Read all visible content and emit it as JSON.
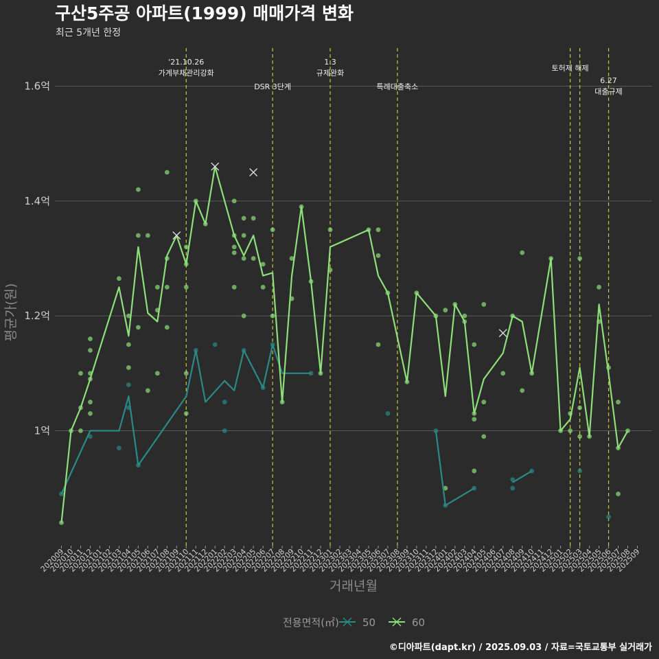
{
  "chart_data": {
    "type": "line",
    "title": "구산5주공 아파트(1999) 매매가격 변화",
    "subtitle": "최근 5개년 한정",
    "xlabel": "거래년월",
    "ylabel": "평균가(원)",
    "ylim": [
      0.8,
      1.6
    ],
    "yticks": [
      {
        "value": 1.0,
        "label": "1억"
      },
      {
        "value": 1.2,
        "label": "1.2억"
      },
      {
        "value": 1.4,
        "label": "1.4억"
      },
      {
        "value": 1.6,
        "label": "1.6억"
      }
    ],
    "x": [
      "202009",
      "202010",
      "202011",
      "202012",
      "202101",
      "202102",
      "202103",
      "202104",
      "202105",
      "202106",
      "202107",
      "202108",
      "202109",
      "202110",
      "202111",
      "202112",
      "202201",
      "202202",
      "202203",
      "202204",
      "202205",
      "202206",
      "202207",
      "202208",
      "202209",
      "202210",
      "202211",
      "202212",
      "202301",
      "202302",
      "202303",
      "202304",
      "202305",
      "202306",
      "202307",
      "202308",
      "202309",
      "202310",
      "202311",
      "202312",
      "202401",
      "202402",
      "202403",
      "202404",
      "202405",
      "202406",
      "202407",
      "202408",
      "202409",
      "202410",
      "202411",
      "202412",
      "202501",
      "202502",
      "202503",
      "202504",
      "202505",
      "202506",
      "202507",
      "202508",
      "202509"
    ],
    "legend_title": "전용면적(㎡)",
    "grid": true,
    "series": [
      {
        "name": "50",
        "color": "#2a8a88",
        "line": [
          [
            "202009",
            0.89
          ],
          [
            "202012",
            1.0
          ],
          [
            "202103",
            1.0
          ],
          [
            "202104",
            1.06
          ],
          [
            "202105",
            0.94
          ],
          [
            "202110",
            1.06
          ],
          [
            "202111",
            1.14
          ],
          [
            "202112",
            1.05
          ],
          [
            "202202",
            1.087
          ],
          [
            "202203",
            1.07
          ],
          [
            "202204",
            1.14
          ],
          [
            "202206",
            1.075
          ],
          [
            "202207",
            1.15
          ],
          [
            "202208",
            1.1
          ],
          [
            "202211",
            1.1
          ]
        ],
        "line2": [
          [
            "202312",
            1.0
          ],
          [
            "202401",
            0.87
          ],
          [
            "202404",
            0.9
          ]
        ],
        "line3": [
          [
            "202408",
            0.91
          ],
          [
            "202410",
            0.93
          ]
        ],
        "points": [
          [
            "202009",
            0.89
          ],
          [
            "202012",
            0.99
          ],
          [
            "202103",
            0.97
          ],
          [
            "202104",
            1.04
          ],
          [
            "202104",
            1.08
          ],
          [
            "202105",
            0.94
          ],
          [
            "202111",
            1.14
          ],
          [
            "202201",
            1.15
          ],
          [
            "202202",
            1.05
          ],
          [
            "202202",
            1.0
          ],
          [
            "202204",
            1.14
          ],
          [
            "202206",
            1.075
          ],
          [
            "202207",
            1.15
          ],
          [
            "202211",
            1.1
          ],
          [
            "202307",
            1.03
          ],
          [
            "202312",
            1.0
          ],
          [
            "202401",
            0.87
          ],
          [
            "202404",
            0.9
          ],
          [
            "202408",
            0.9
          ],
          [
            "202408",
            0.915
          ],
          [
            "202410",
            0.93
          ],
          [
            "202503",
            0.93
          ],
          [
            "202506",
            0.85
          ]
        ]
      },
      {
        "name": "60",
        "color": "#8ee07a",
        "line": [
          [
            "202009",
            0.84
          ],
          [
            "202010",
            1.0
          ],
          [
            "202011",
            1.04
          ],
          [
            "202012",
            1.09
          ],
          [
            "202103",
            1.25
          ],
          [
            "202104",
            1.165
          ],
          [
            "202105",
            1.32
          ],
          [
            "202106",
            1.205
          ],
          [
            "202107",
            1.19
          ],
          [
            "202108",
            1.305
          ],
          [
            "202109",
            1.34
          ],
          [
            "202110",
            1.29
          ],
          [
            "202111",
            1.4
          ],
          [
            "202112",
            1.36
          ],
          [
            "202201",
            1.46
          ],
          [
            "202203",
            1.34
          ],
          [
            "202204",
            1.305
          ],
          [
            "202205",
            1.34
          ],
          [
            "202206",
            1.27
          ],
          [
            "202207",
            1.275
          ],
          [
            "202208",
            1.05
          ],
          [
            "202209",
            1.27
          ],
          [
            "202210",
            1.39
          ],
          [
            "202211",
            1.26
          ],
          [
            "202212",
            1.1
          ],
          [
            "202301",
            1.32
          ],
          [
            "202305",
            1.35
          ],
          [
            "202306",
            1.27
          ],
          [
            "202307",
            1.24
          ],
          [
            "202309",
            1.085
          ],
          [
            "202310",
            1.24
          ],
          [
            "202312",
            1.2
          ],
          [
            "202401",
            1.06
          ],
          [
            "202402",
            1.22
          ],
          [
            "202403",
            1.19
          ],
          [
            "202404",
            1.03
          ],
          [
            "202405",
            1.09
          ],
          [
            "202407",
            1.135
          ],
          [
            "202408",
            1.2
          ],
          [
            "202409",
            1.19
          ],
          [
            "202410",
            1.1
          ],
          [
            "202412",
            1.3
          ],
          [
            "202501",
            1.0
          ],
          [
            "202502",
            1.02
          ],
          [
            "202503",
            1.11
          ],
          [
            "202504",
            0.99
          ],
          [
            "202505",
            1.22
          ],
          [
            "202506",
            1.1
          ],
          [
            "202507",
            0.97
          ],
          [
            "202508",
            1.0
          ]
        ],
        "points": [
          [
            "202009",
            0.84
          ],
          [
            "202010",
            1.0
          ],
          [
            "202011",
            1.1
          ],
          [
            "202011",
            1.04
          ],
          [
            "202011",
            1.0
          ],
          [
            "202012",
            1.16
          ],
          [
            "202012",
            1.14
          ],
          [
            "202012",
            1.1
          ],
          [
            "202012",
            1.09
          ],
          [
            "202012",
            1.05
          ],
          [
            "202012",
            1.03
          ],
          [
            "202103",
            1.265
          ],
          [
            "202104",
            1.2
          ],
          [
            "202104",
            1.15
          ],
          [
            "202104",
            1.11
          ],
          [
            "202105",
            1.42
          ],
          [
            "202105",
            1.34
          ],
          [
            "202105",
            1.18
          ],
          [
            "202106",
            1.34
          ],
          [
            "202106",
            1.07
          ],
          [
            "202107",
            1.25
          ],
          [
            "202107",
            1.21
          ],
          [
            "202107",
            1.1
          ],
          [
            "202108",
            1.45
          ],
          [
            "202108",
            1.3
          ],
          [
            "202108",
            1.25
          ],
          [
            "202108",
            1.18
          ],
          [
            "202110",
            1.32
          ],
          [
            "202110",
            1.29
          ],
          [
            "202110",
            1.25
          ],
          [
            "202110",
            1.1
          ],
          [
            "202110",
            1.03
          ],
          [
            "202111",
            1.4
          ],
          [
            "202112",
            1.36
          ],
          [
            "202203",
            1.4
          ],
          [
            "202203",
            1.34
          ],
          [
            "202203",
            1.32
          ],
          [
            "202203",
            1.31
          ],
          [
            "202203",
            1.25
          ],
          [
            "202204",
            1.37
          ],
          [
            "202204",
            1.34
          ],
          [
            "202204",
            1.3
          ],
          [
            "202204",
            1.2
          ],
          [
            "202205",
            1.37
          ],
          [
            "202205",
            1.3
          ],
          [
            "202206",
            1.29
          ],
          [
            "202206",
            1.25
          ],
          [
            "202207",
            1.35
          ],
          [
            "202207",
            1.2
          ],
          [
            "202208",
            1.05
          ],
          [
            "202209",
            1.3
          ],
          [
            "202209",
            1.23
          ],
          [
            "202210",
            1.39
          ],
          [
            "202211",
            1.26
          ],
          [
            "202212",
            1.1
          ],
          [
            "202301",
            1.35
          ],
          [
            "202301",
            1.28
          ],
          [
            "202305",
            1.35
          ],
          [
            "202306",
            1.35
          ],
          [
            "202306",
            1.305
          ],
          [
            "202306",
            1.15
          ],
          [
            "202307",
            1.24
          ],
          [
            "202309",
            1.085
          ],
          [
            "202310",
            1.24
          ],
          [
            "202312",
            1.2
          ],
          [
            "202401",
            1.21
          ],
          [
            "202401",
            0.9
          ],
          [
            "202402",
            1.22
          ],
          [
            "202403",
            1.2
          ],
          [
            "202403",
            1.19
          ],
          [
            "202404",
            1.15
          ],
          [
            "202404",
            1.03
          ],
          [
            "202404",
            1.02
          ],
          [
            "202404",
            0.93
          ],
          [
            "202405",
            1.22
          ],
          [
            "202405",
            1.05
          ],
          [
            "202405",
            0.99
          ],
          [
            "202407",
            1.1
          ],
          [
            "202408",
            1.2
          ],
          [
            "202409",
            1.31
          ],
          [
            "202409",
            1.07
          ],
          [
            "202410",
            1.1
          ],
          [
            "202412",
            1.3
          ],
          [
            "202501",
            1.0
          ],
          [
            "202502",
            1.0
          ],
          [
            "202502",
            1.03
          ],
          [
            "202503",
            1.3
          ],
          [
            "202503",
            1.04
          ],
          [
            "202503",
            0.99
          ],
          [
            "202504",
            0.99
          ],
          [
            "202505",
            1.25
          ],
          [
            "202505",
            1.19
          ],
          [
            "202506",
            1.11
          ],
          [
            "202507",
            1.05
          ],
          [
            "202507",
            0.97
          ],
          [
            "202507",
            0.89
          ],
          [
            "202508",
            1.0
          ]
        ],
        "crosses": [
          [
            "202109",
            1.34
          ],
          [
            "202201",
            1.46
          ],
          [
            "202205",
            1.45
          ],
          [
            "202407",
            1.17
          ]
        ]
      }
    ],
    "events": [
      {
        "x": "202110",
        "lines": [
          "'21.10.26",
          "가계부채관리강화"
        ]
      },
      {
        "x": "202207",
        "lines": [
          "DSR 3단계"
        ]
      },
      {
        "x": "202301",
        "lines": [
          "1.3",
          "규제완화"
        ]
      },
      {
        "x": "202308",
        "lines": [
          "특례대출축소"
        ]
      },
      {
        "x": "202502",
        "lines": [
          "토허제 해제"
        ]
      },
      {
        "x": "202503",
        "lines": []
      },
      {
        "x": "202506",
        "lines": [
          "6.27",
          "대출규제"
        ]
      }
    ],
    "event_line_color": "#c8c83a",
    "source": "©디아파트(dapt.kr) / 2025.09.03 / 자료=국토교통부 실거래가"
  }
}
